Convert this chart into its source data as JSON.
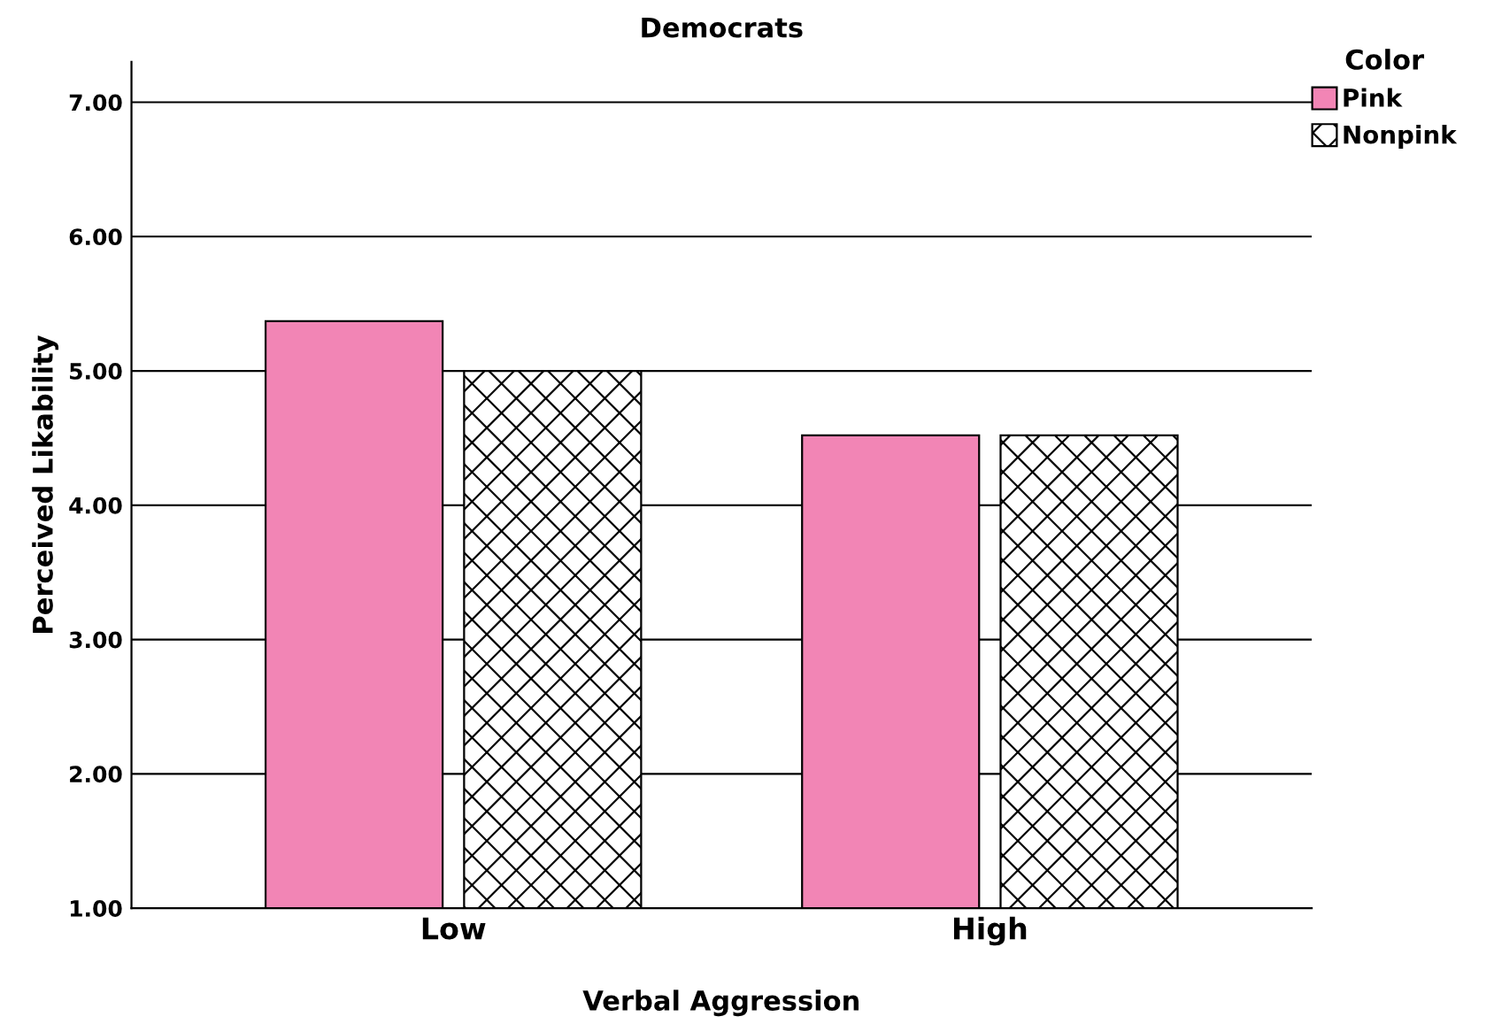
{
  "chart_data": {
    "type": "bar",
    "title": "Democrats",
    "xlabel": "Verbal Aggression",
    "ylabel": "Perceived Likability",
    "legend_title": "Color",
    "categories": [
      "Low",
      "High"
    ],
    "series": [
      {
        "name": "Pink",
        "color": "#f285b5",
        "values": [
          5.37,
          4.52
        ]
      },
      {
        "name": "Nonpink",
        "color": "#000000",
        "values": [
          5.0,
          4.52
        ]
      }
    ],
    "ylim": [
      1,
      7.3
    ],
    "yticks": [
      {
        "value": 1,
        "label": "1.00"
      },
      {
        "value": 2,
        "label": "2.00"
      },
      {
        "value": 3,
        "label": "3.00"
      },
      {
        "value": 4,
        "label": "4.00"
      },
      {
        "value": 5,
        "label": "5.00"
      },
      {
        "value": 6,
        "label": "6.00"
      },
      {
        "value": 7,
        "label": "7.00"
      }
    ],
    "grid": "y",
    "legend": "top right"
  }
}
